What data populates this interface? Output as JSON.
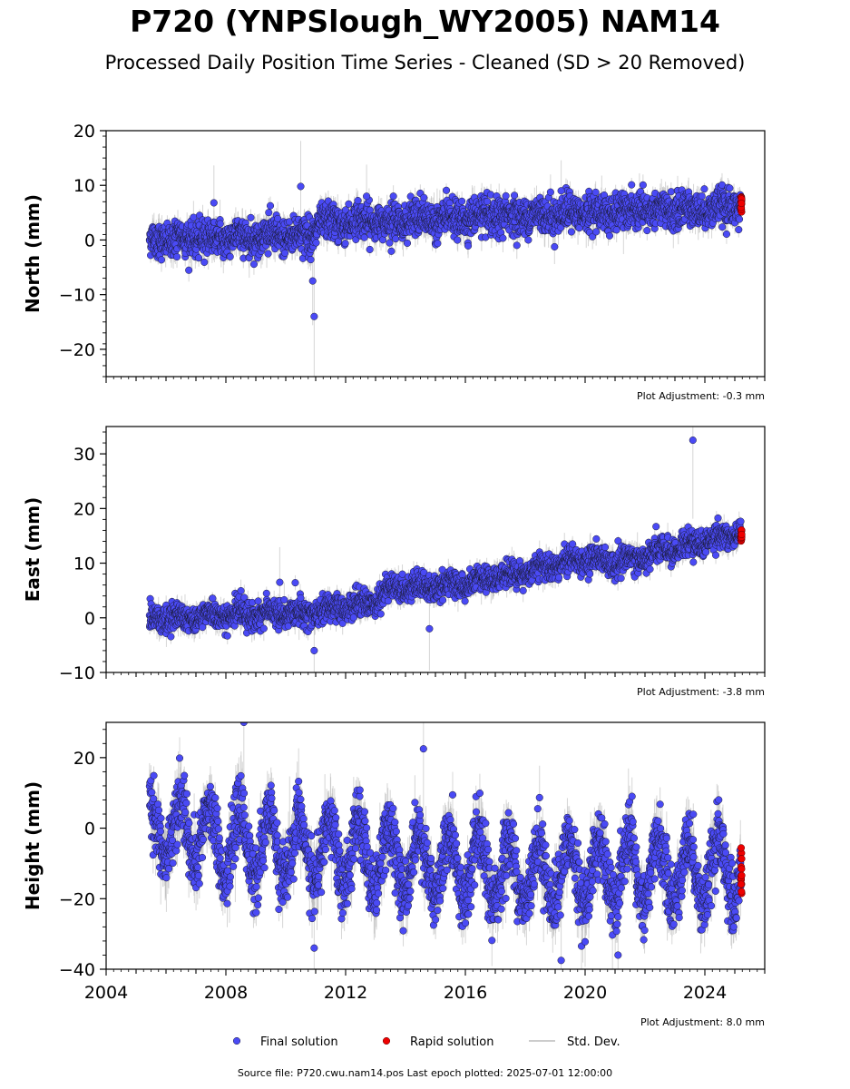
{
  "title": "P720 (YNPSlough_WY2005) NAM14",
  "subtitle": "Processed Daily Position Time Series - Cleaned (SD > 20 Removed)",
  "footer": "Source file: P720.cwu.nam14.pos  Last epoch plotted: 2025-07-01 12:00:00",
  "legend": {
    "final": "Final solution",
    "rapid": "Rapid solution",
    "std": "Std. Dev."
  },
  "colors": {
    "final": "#4a4af5",
    "rapid": "#ee0000",
    "std": "#bbbbbb",
    "edge": "#1a1a33"
  },
  "chart_data": [
    {
      "type": "scatter",
      "ylabel": "North (mm)",
      "ylim": [
        -25,
        20
      ],
      "yticks": [
        -20,
        -10,
        0,
        10,
        20
      ],
      "xlim": [
        2004.0,
        2026.0
      ],
      "adjustment": "Plot Adjustment: -0.3 mm",
      "trend": [
        [
          2005.5,
          0.0
        ],
        [
          2011.0,
          1.0
        ],
        [
          2011.05,
          3.0
        ],
        [
          2025.4,
          6.0
        ]
      ],
      "noise": 1.6,
      "seasonal": 0.5,
      "outliers": [
        [
          2007.6,
          6.8
        ],
        [
          2010.5,
          9.8
        ],
        [
          2010.95,
          -14.0
        ],
        [
          2010.9,
          -7.5
        ],
        [
          2019.2,
          9.0
        ],
        [
          2012.7,
          8.0
        ]
      ],
      "rapid": [
        4.5,
        8.0
      ]
    },
    {
      "type": "scatter",
      "ylabel": "East (mm)",
      "ylim": [
        -10,
        35
      ],
      "yticks": [
        -10,
        0,
        10,
        20,
        30
      ],
      "xlim": [
        2004.0,
        2026.0
      ],
      "adjustment": "Plot Adjustment: -3.8 mm",
      "trend": [
        [
          2005.5,
          0.0
        ],
        [
          2011.0,
          1.0
        ],
        [
          2013.0,
          3.0
        ],
        [
          2013.5,
          5.5
        ],
        [
          2016.0,
          6.0
        ],
        [
          2020.0,
          11.0
        ],
        [
          2021.0,
          10.0
        ],
        [
          2025.4,
          16.0
        ]
      ],
      "noise": 1.2,
      "seasonal": 0.6,
      "outliers": [
        [
          2023.6,
          32.5
        ],
        [
          2010.95,
          -6.0
        ],
        [
          2014.8,
          -2.0
        ],
        [
          2009.8,
          6.5
        ]
      ],
      "rapid": [
        14.0,
        16.5
      ]
    },
    {
      "type": "scatter",
      "ylabel": "Height (mm)",
      "ylim": [
        -40,
        30
      ],
      "yticks": [
        -40,
        -20,
        0,
        20
      ],
      "xlim": [
        2004.0,
        2026.0
      ],
      "xticks": [
        2004,
        2008,
        2012,
        2016,
        2020,
        2024
      ],
      "adjustment": "Plot Adjustment: 8.0 mm",
      "trend": [
        [
          2005.5,
          0.0
        ],
        [
          2009.0,
          -5.0
        ],
        [
          2013.0,
          -8.0
        ],
        [
          2018.0,
          -13.0
        ],
        [
          2025.4,
          -12.0
        ]
      ],
      "noise": 4.5,
      "seasonal": 9.0,
      "outliers": [
        [
          2008.6,
          30.0
        ],
        [
          2014.6,
          22.5
        ],
        [
          2019.2,
          -37.5
        ],
        [
          2021.1,
          -36.0
        ],
        [
          2010.95,
          -34.0
        ]
      ],
      "rapid": [
        -19.0,
        -5.0
      ]
    }
  ]
}
